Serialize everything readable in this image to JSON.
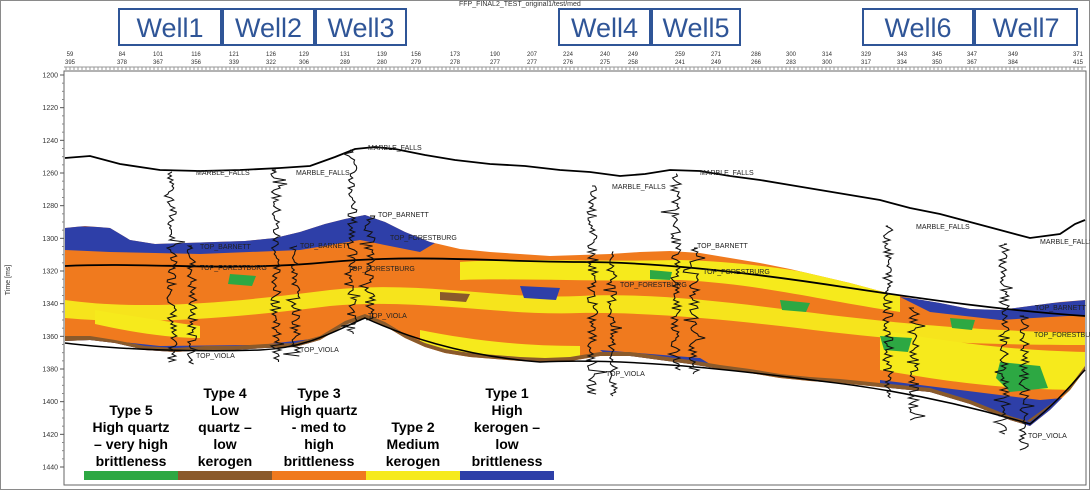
{
  "header": {
    "title": "FFP_FINAL2_TEST_original1/test/med",
    "wells": [
      "Well1",
      "Well2",
      "Well3",
      "Well4",
      "Well5",
      "Well6",
      "Well7"
    ]
  },
  "axis": {
    "label": "Time [ms]",
    "ticks": [
      "1200",
      "1220",
      "1240",
      "1260",
      "1280",
      "1300",
      "1320",
      "1340",
      "1360",
      "1380",
      "1400",
      "1420",
      "1440"
    ],
    "top_row1": [
      "59",
      "84",
      "101",
      "116",
      "121",
      "126",
      "129",
      "131",
      "139",
      "156",
      "173",
      "190",
      "207",
      "224",
      "240",
      "249",
      "259",
      "271",
      "286",
      "300",
      "314",
      "329",
      "343",
      "345",
      "347",
      "349",
      "371"
    ],
    "top_row2": [
      "395",
      "378",
      "367",
      "356",
      "339",
      "322",
      "306",
      "289",
      "280",
      "279",
      "278",
      "277",
      "277",
      "276",
      "275",
      "258",
      "241",
      "249",
      "266",
      "283",
      "300",
      "317",
      "334",
      "350",
      "367",
      "384",
      "415"
    ]
  },
  "horizons": {
    "marble_falls": "MARBLE_FALLS",
    "top_barnett": "TOP_BARNETT",
    "top_forestburg": "TOP_FORESTBURG",
    "top_viola": "TOP_VIOLA"
  },
  "legend": [
    {
      "lines": [
        "Type 5",
        "High quartz",
        "– very high",
        "brittleness"
      ],
      "color": "#2da843"
    },
    {
      "lines": [
        "Type 4",
        "Low",
        "quartz –",
        "low",
        "kerogen"
      ],
      "color": "#8a5a2b"
    },
    {
      "lines": [
        "Type 3",
        "High quartz",
        "- med to",
        "high",
        "brittleness"
      ],
      "color": "#f07a1e"
    },
    {
      "lines": [
        "Type 2",
        "Medium",
        "kerogen"
      ],
      "color": "#f6ea1c"
    },
    {
      "lines": [
        "Type 1",
        "High",
        "kerogen –",
        "low",
        "brittleness"
      ],
      "color": "#2e3fa8"
    }
  ],
  "colors": {
    "orange": "#f07a1e",
    "yellow": "#f6ea1c",
    "blue": "#2e3fa8",
    "green": "#2da843",
    "brown": "#8a5a2b",
    "well_label": "#2f5597"
  }
}
